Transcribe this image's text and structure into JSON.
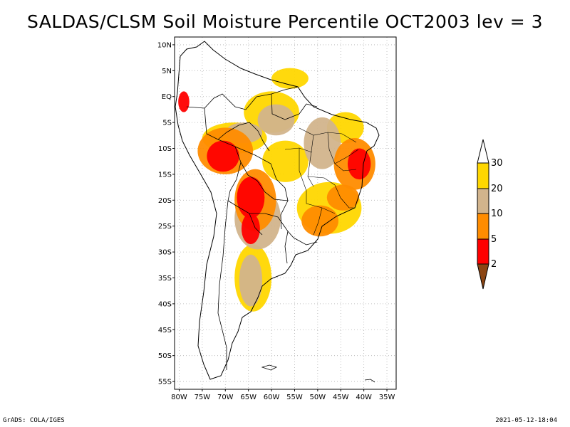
{
  "title": "SALDAS/CLSM Soil Moisture Percentile OCT2003 lev = 3",
  "footer": {
    "left": "GrADS: COLA/IGES",
    "right": "2021-05-12-18:04"
  },
  "axes": {
    "lat_ticks": [
      "10N",
      "5N",
      "EQ",
      "5S",
      "10S",
      "15S",
      "20S",
      "25S",
      "30S",
      "35S",
      "40S",
      "45S",
      "50S",
      "55S"
    ],
    "lon_ticks": [
      "80W",
      "75W",
      "70W",
      "65W",
      "60W",
      "55W",
      "50W",
      "45W",
      "40W",
      "35W"
    ]
  },
  "colorbar": {
    "labels": [
      "2",
      "5",
      "10",
      "20",
      "30"
    ],
    "colors": {
      "below_2": "#8B4513",
      "2_5": "#FF0000",
      "5_10": "#FF8C00",
      "10_20": "#D2B48C",
      "20_30": "#FFD700",
      "above_30": "#FFFFFF"
    }
  },
  "chart_data": {
    "type": "heatmap",
    "title": "SALDAS/CLSM Soil Moisture Percentile OCT2003 lev = 3",
    "variable": "Soil Moisture Percentile",
    "period": "OCT2003",
    "level": 3,
    "lon_range": [
      -80,
      -35
    ],
    "lat_range": [
      -55,
      10
    ],
    "bins": [
      {
        "label": "<2",
        "max": 2,
        "color": "#8B4513"
      },
      {
        "label": "2-5",
        "min": 2,
        "max": 5,
        "color": "#FF0000"
      },
      {
        "label": "5-10",
        "min": 5,
        "max": 10,
        "color": "#FF8C00"
      },
      {
        "label": "10-20",
        "min": 10,
        "max": 20,
        "color": "#D2B48C"
      },
      {
        "label": "20-30",
        "min": 20,
        "max": 30,
        "color": "#FFD700"
      },
      {
        "label": ">30",
        "min": 30,
        "color": "#FFFFFF"
      }
    ],
    "regions": [
      {
        "name": "peru-bolivia-west",
        "lon": -70.5,
        "lat": -11.5,
        "rlon": 3.5,
        "rlat": 3.0,
        "bin": "2-5"
      },
      {
        "name": "peru-bolivia-ring",
        "lon": -70.0,
        "lat": -10.5,
        "rlon": 6.0,
        "rlat": 4.5,
        "bin": "5-10"
      },
      {
        "name": "western-amazon",
        "lon": -68.0,
        "lat": -8.0,
        "rlon": 7.0,
        "rlat": 3.0,
        "bin": "20-30"
      },
      {
        "name": "upper-amazon-tan",
        "lon": -66.0,
        "lat": -7.0,
        "rlon": 4.0,
        "rlat": 2.0,
        "bin": "10-20"
      },
      {
        "name": "ecuador-coast",
        "lon": -79.0,
        "lat": -1.0,
        "rlon": 1.2,
        "rlat": 2.0,
        "bin": "2-5"
      },
      {
        "name": "bolivia-paraguay",
        "lon": -64.5,
        "lat": -19.5,
        "rlon": 3.0,
        "rlat": 4.0,
        "bin": "2-5"
      },
      {
        "name": "bolivia-paraguay-ring",
        "lon": -63.5,
        "lat": -20.0,
        "rlon": 4.5,
        "rlat": 6.0,
        "bin": "5-10"
      },
      {
        "name": "northern-argentina",
        "lon": -64.5,
        "lat": -25.5,
        "rlon": 2.0,
        "rlat": 3.0,
        "bin": "2-5"
      },
      {
        "name": "chaco-ring",
        "lon": -63.0,
        "lat": -23.5,
        "rlon": 5.0,
        "rlat": 6.0,
        "bin": "10-20"
      },
      {
        "name": "central-brazil",
        "lon": -57.0,
        "lat": -12.5,
        "rlon": 5.0,
        "rlat": 4.0,
        "bin": "20-30"
      },
      {
        "name": "amazon-north-tan",
        "lon": -59.0,
        "lat": -4.5,
        "rlon": 4.0,
        "rlat": 3.0,
        "bin": "10-20"
      },
      {
        "name": "amazon-north-gold",
        "lon": -60.0,
        "lat": -3.0,
        "rlon": 6.0,
        "rlat": 4.0,
        "bin": "20-30"
      },
      {
        "name": "tocantins",
        "lon": -49.0,
        "lat": -9.0,
        "rlon": 4.0,
        "rlat": 5.0,
        "bin": "10-20"
      },
      {
        "name": "bahia-east",
        "lon": -41.0,
        "lat": -13.0,
        "rlon": 2.5,
        "rlat": 3.0,
        "bin": "2-5"
      },
      {
        "name": "bahia-ring",
        "lon": -42.0,
        "lat": -13.0,
        "rlon": 4.5,
        "rlat": 5.0,
        "bin": "5-10"
      },
      {
        "name": "minas-gerais",
        "lon": -44.5,
        "lat": -19.5,
        "rlon": 3.5,
        "rlat": 2.5,
        "bin": "5-10"
      },
      {
        "name": "sao-paulo-parana",
        "lon": -49.5,
        "lat": -24.0,
        "rlon": 4.0,
        "rlat": 3.0,
        "bin": "5-10"
      },
      {
        "name": "southeast-gold",
        "lon": -47.5,
        "lat": -21.5,
        "rlon": 7.0,
        "rlat": 5.0,
        "bin": "20-30"
      },
      {
        "name": "pampas",
        "lon": -64.5,
        "lat": -35.5,
        "rlon": 2.5,
        "rlat": 5.0,
        "bin": "10-20"
      },
      {
        "name": "pampas-gold",
        "lon": -64.0,
        "lat": -35.0,
        "rlon": 4.0,
        "rlat": 6.5,
        "bin": "20-30"
      },
      {
        "name": "guianas",
        "lon": -56.0,
        "lat": 3.5,
        "rlon": 4.0,
        "rlat": 2.0,
        "bin": "20-30"
      },
      {
        "name": "northeast-brazil",
        "lon": -44.0,
        "lat": -6.0,
        "rlon": 4.0,
        "rlat": 3.0,
        "bin": "20-30"
      }
    ]
  }
}
